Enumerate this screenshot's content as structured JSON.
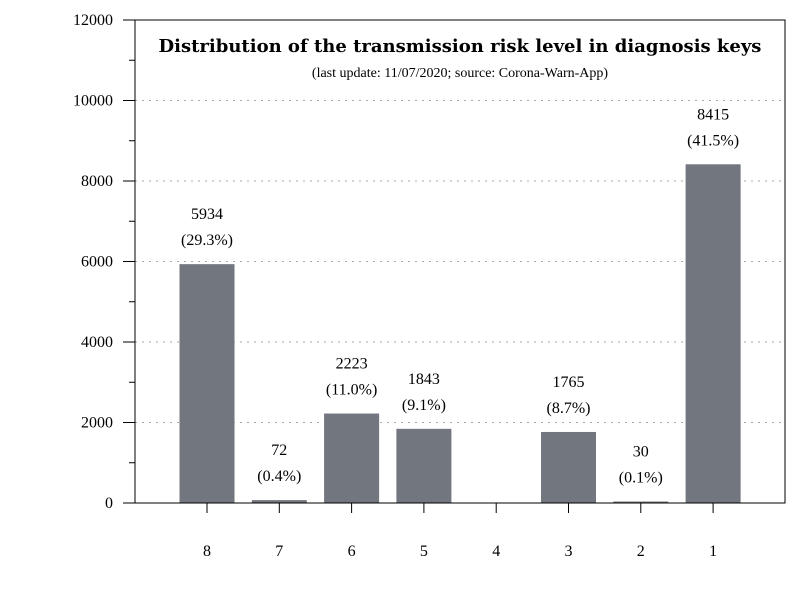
{
  "chart_data": {
    "type": "bar",
    "title": "Distribution of the transmission risk level in diagnosis keys",
    "subtitle": "(last update: 11/07/2020; source: Corona-Warn-App)",
    "xlabel": "",
    "ylabel": "",
    "categories": [
      "8",
      "7",
      "6",
      "5",
      "4",
      "3",
      "2",
      "1"
    ],
    "values": [
      5934,
      72,
      2223,
      1843,
      0,
      1765,
      30,
      8415
    ],
    "percent_labels": [
      "(29.3%)",
      "(0.4%)",
      "(11.0%)",
      "(9.1%)",
      "",
      "(8.7%)",
      "(0.1%)",
      "(41.5%)"
    ],
    "value_labels": [
      "5934",
      "72",
      "2223",
      "1843",
      "",
      "1765",
      "30",
      "8415"
    ],
    "ylim": [
      0,
      12000
    ],
    "yticks": [
      0,
      2000,
      4000,
      6000,
      8000,
      10000,
      12000
    ],
    "y_minor_step": 1000,
    "grid": "horizontal dotted",
    "bar_color": "#72767e"
  }
}
